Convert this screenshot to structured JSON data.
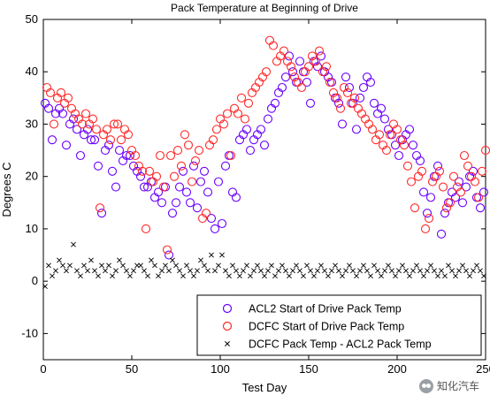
{
  "chart_data": {
    "type": "scatter",
    "title": "Pack Temperature at Beginning of Drive",
    "xlabel": "Test Day",
    "ylabel": "Degrees C",
    "xlim": [
      0,
      250
    ],
    "ylim": [
      -15,
      50
    ],
    "xticks": [
      0,
      50,
      100,
      150,
      200,
      250
    ],
    "yticks": [
      -10,
      0,
      10,
      20,
      30,
      40,
      50
    ],
    "legend_position": "bottom-right",
    "grid": false,
    "series": [
      {
        "name": "ACL2 Start of Drive Pack Temp",
        "marker": "circle",
        "color": "#6a00ff",
        "x": [
          1,
          3,
          5,
          7,
          9,
          11,
          13,
          15,
          17,
          19,
          21,
          23,
          25,
          27,
          29,
          31,
          33,
          35,
          37,
          39,
          41,
          43,
          45,
          47,
          49,
          51,
          53,
          55,
          57,
          59,
          61,
          63,
          65,
          67,
          69,
          71,
          73,
          75,
          77,
          79,
          81,
          83,
          85,
          87,
          89,
          91,
          93,
          95,
          97,
          99,
          101,
          103,
          105,
          107,
          109,
          111,
          113,
          115,
          117,
          119,
          121,
          123,
          125,
          127,
          129,
          131,
          133,
          135,
          137,
          139,
          141,
          143,
          145,
          147,
          149,
          151,
          153,
          155,
          157,
          159,
          161,
          163,
          165,
          167,
          169,
          171,
          173,
          175,
          177,
          179,
          181,
          183,
          185,
          187,
          189,
          191,
          193,
          195,
          197,
          199,
          201,
          203,
          205,
          207,
          209,
          211,
          213,
          215,
          217,
          219,
          221,
          223,
          225,
          227,
          229,
          231,
          233,
          235,
          237,
          239,
          241,
          243,
          245,
          247,
          249
        ],
        "y": [
          34,
          33,
          27,
          32,
          33,
          32,
          26,
          30,
          31,
          29,
          24,
          28,
          29,
          27,
          27,
          22,
          13,
          25,
          26,
          21,
          18,
          25,
          23,
          24,
          24,
          22,
          21,
          20,
          18,
          18,
          19,
          16,
          17,
          15,
          18,
          5,
          13,
          15,
          18,
          21,
          17,
          15,
          22,
          14,
          19,
          21,
          17,
          12,
          10,
          19,
          11,
          22,
          24,
          17,
          16,
          27,
          28,
          29,
          25,
          27,
          28,
          29,
          26,
          31,
          33,
          34,
          36,
          37,
          39,
          43,
          40,
          38,
          42,
          40,
          38,
          34,
          42,
          41,
          43,
          40,
          39,
          38,
          35,
          34,
          30,
          39,
          37,
          34,
          29,
          35,
          37,
          39,
          38,
          34,
          32,
          33,
          31,
          29,
          28,
          26,
          24,
          27,
          28,
          29,
          26,
          24,
          23,
          17,
          13,
          16,
          20,
          22,
          9,
          13,
          15,
          17,
          16,
          19,
          15,
          18,
          20,
          21,
          16,
          14,
          17
        ]
      },
      {
        "name": "DCFC Start of Drive Pack Temp",
        "marker": "circle",
        "color": "#ff2a2a",
        "x": [
          2,
          4,
          6,
          8,
          10,
          12,
          14,
          16,
          18,
          20,
          22,
          24,
          26,
          28,
          30,
          32,
          34,
          36,
          38,
          40,
          42,
          44,
          46,
          48,
          50,
          52,
          54,
          56,
          58,
          60,
          62,
          64,
          66,
          68,
          70,
          72,
          74,
          76,
          78,
          80,
          82,
          84,
          86,
          88,
          90,
          92,
          94,
          96,
          98,
          100,
          102,
          104,
          106,
          108,
          110,
          112,
          114,
          116,
          118,
          120,
          122,
          124,
          126,
          128,
          130,
          132,
          134,
          136,
          138,
          140,
          142,
          144,
          146,
          148,
          150,
          152,
          154,
          156,
          158,
          160,
          162,
          164,
          166,
          168,
          170,
          172,
          174,
          176,
          178,
          180,
          182,
          184,
          186,
          188,
          190,
          192,
          194,
          196,
          198,
          200,
          202,
          204,
          206,
          208,
          210,
          212,
          214,
          216,
          218,
          220,
          222,
          224,
          226,
          228,
          230,
          232,
          234,
          236,
          238,
          240,
          242,
          244,
          246,
          248,
          250
        ],
        "y": [
          37,
          36,
          30,
          35,
          36,
          34,
          35,
          33,
          32,
          31,
          30,
          32,
          30,
          31,
          29,
          14,
          28,
          29,
          27,
          30,
          30,
          27,
          29,
          28,
          25,
          24,
          22,
          21,
          10,
          21,
          19,
          20,
          24,
          18,
          6,
          24,
          20,
          25,
          22,
          28,
          26,
          19,
          23,
          25,
          12,
          13,
          26,
          27,
          29,
          31,
          30,
          32,
          24,
          33,
          32,
          35,
          31,
          34,
          36,
          37,
          38,
          39,
          40,
          46,
          45,
          42,
          43,
          44,
          42,
          41,
          39,
          38,
          37,
          40,
          41,
          43,
          42,
          44,
          40,
          41,
          38,
          36,
          35,
          33,
          37,
          36,
          34,
          35,
          33,
          32,
          31,
          30,
          29,
          27,
          28,
          26,
          25,
          28,
          30,
          29,
          27,
          26,
          22,
          19,
          14,
          20,
          21,
          10,
          12,
          19,
          20,
          21,
          18,
          14,
          15,
          20,
          18,
          17,
          24,
          22,
          20,
          19,
          16,
          21,
          25
        ]
      },
      {
        "name": "DCFC Pack Temp - ACL2 Pack Temp",
        "marker": "x",
        "color": "#000000",
        "x": [
          1,
          3,
          5,
          7,
          9,
          11,
          13,
          15,
          17,
          19,
          21,
          23,
          25,
          27,
          29,
          31,
          33,
          35,
          37,
          39,
          41,
          43,
          45,
          47,
          49,
          51,
          53,
          55,
          57,
          59,
          61,
          63,
          65,
          67,
          69,
          71,
          73,
          75,
          77,
          79,
          81,
          83,
          85,
          87,
          89,
          91,
          93,
          95,
          97,
          99,
          101,
          103,
          105,
          107,
          109,
          111,
          113,
          115,
          117,
          119,
          121,
          123,
          125,
          127,
          129,
          131,
          133,
          135,
          137,
          139,
          141,
          143,
          145,
          147,
          149,
          151,
          153,
          155,
          157,
          159,
          161,
          163,
          165,
          167,
          169,
          171,
          173,
          175,
          177,
          179,
          181,
          183,
          185,
          187,
          189,
          191,
          193,
          195,
          197,
          199,
          201,
          203,
          205,
          207,
          209,
          211,
          213,
          215,
          217,
          219,
          221,
          223,
          225,
          227,
          229,
          231,
          233,
          235,
          237,
          239,
          241,
          243,
          245,
          247,
          249
        ],
        "y": [
          -1,
          3,
          1,
          2,
          4,
          3,
          2,
          3,
          7,
          2,
          1,
          3,
          2,
          4,
          2,
          1,
          3,
          2,
          3,
          1,
          2,
          4,
          3,
          2,
          1,
          2,
          3,
          3,
          2,
          1,
          4,
          3,
          1,
          2,
          3,
          2,
          4,
          3,
          2,
          1,
          3,
          2,
          1,
          2,
          4,
          3,
          2,
          5,
          2,
          3,
          5,
          2,
          1,
          3,
          2,
          1,
          2,
          3,
          1,
          2,
          3,
          2,
          1,
          2,
          3,
          1,
          2,
          3,
          2,
          1,
          2,
          3,
          2,
          1,
          3,
          2,
          1,
          2,
          3,
          2,
          1,
          2,
          3,
          2,
          1,
          2,
          3,
          2,
          1,
          2,
          3,
          2,
          1,
          3,
          2,
          1,
          2,
          3,
          2,
          1,
          2,
          3,
          2,
          1,
          2,
          3,
          2,
          1,
          2,
          3,
          2,
          1,
          2,
          1,
          3,
          2,
          1,
          2,
          3,
          2,
          1,
          2,
          3,
          2,
          1
        ]
      }
    ]
  },
  "watermark": {
    "text": "知化汽车",
    "icon": "wechat-icon"
  }
}
